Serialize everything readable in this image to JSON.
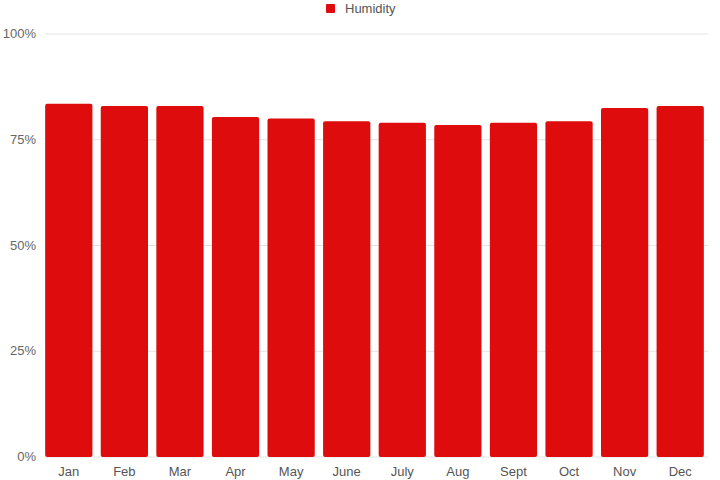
{
  "chart_data": {
    "type": "bar",
    "categories": [
      "Jan",
      "Feb",
      "Mar",
      "Apr",
      "May",
      "June",
      "July",
      "Aug",
      "Sept",
      "Oct",
      "Nov",
      "Dec"
    ],
    "series": [
      {
        "name": "Humidity",
        "color": "#de0c0c",
        "values": [
          83.5,
          83,
          83,
          80.4,
          80,
          79.4,
          79,
          78.5,
          79,
          79.4,
          82.5,
          83
        ]
      }
    ],
    "ylim": [
      0,
      100
    ],
    "yticks": [
      {
        "value": 0,
        "label": "0%"
      },
      {
        "value": 25,
        "label": "25%"
      },
      {
        "value": 50,
        "label": "50%"
      },
      {
        "value": 75,
        "label": "75%"
      },
      {
        "value": 100,
        "label": "100%"
      }
    ],
    "grid": true,
    "legend": "top"
  }
}
